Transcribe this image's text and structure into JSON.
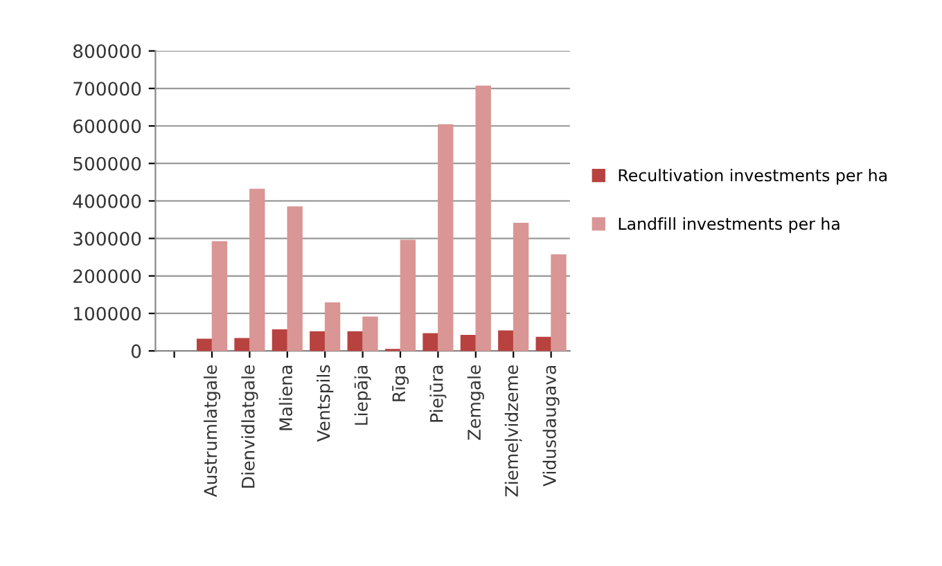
{
  "chart_data": {
    "type": "bar",
    "categories": [
      null,
      "Austrumlatgale",
      "Dienvidlatgale",
      "Maliena",
      "Ventspils",
      "Liepāja",
      "Rīga",
      "Piejūra",
      "Zemgale",
      "Ziemeļvidzeme",
      "Vidusdaugava"
    ],
    "series": [
      {
        "name": "Recultivation investments per ha",
        "color": "#b8423f",
        "values": [
          null,
          30000,
          32000,
          55000,
          50000,
          50000,
          3000,
          45000,
          40000,
          52000,
          35000
        ]
      },
      {
        "name": "Landfill investments per ha",
        "color": "#d99694",
        "values": [
          null,
          290000,
          430000,
          383000,
          127000,
          89000,
          294000,
          602000,
          705000,
          339000,
          255000
        ]
      }
    ],
    "ylim": [
      0,
      800000
    ],
    "yticks": [
      0,
      100000,
      200000,
      300000,
      400000,
      500000,
      600000,
      700000,
      800000
    ],
    "grid": "y",
    "legend": "right"
  }
}
